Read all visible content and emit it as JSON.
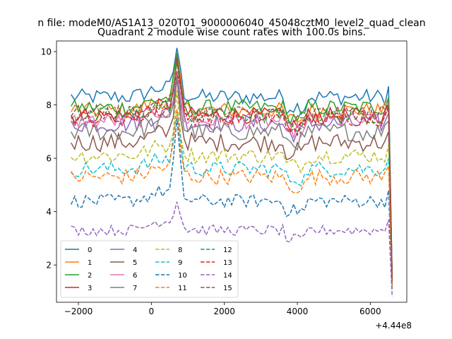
{
  "figure": {
    "suptitle": "n file: modeM0/AS1A13_020T01_9000006040_45048cztM0_level2_quad_clean"
  },
  "chart_data": {
    "type": "line",
    "title": "Quadrant 2 module wise count rates with 100.0s bins.",
    "xlabel": "",
    "ylabel": "",
    "x_offset_label": "+4.44e8",
    "xlim": [
      -2600,
      7000
    ],
    "ylim": [
      0.6,
      10.4
    ],
    "xticks": [
      -2000,
      0,
      2000,
      4000,
      6000
    ],
    "xtick_labels": [
      "−2000",
      "0",
      "2000",
      "4000",
      "6000"
    ],
    "yticks": [
      2,
      4,
      6,
      8,
      10
    ],
    "ytick_labels": [
      "2",
      "4",
      "6",
      "8",
      "10"
    ],
    "grid": false,
    "legend_placement": "lower-left",
    "legend_columns": 4,
    "x_sampling": {
      "start": -2200,
      "step": 100,
      "count": 89
    },
    "series": [
      {
        "name": "0",
        "color": "#1f77b4",
        "dashed": false,
        "base": 8.3,
        "amp": 0.3,
        "peak": 1.7,
        "end": 1.6
      },
      {
        "name": "1",
        "color": "#ff7f0e",
        "dashed": false,
        "base": 7.8,
        "amp": 0.3,
        "peak": 1.8,
        "end": 1.5
      },
      {
        "name": "2",
        "color": "#2ca02c",
        "dashed": false,
        "base": 7.9,
        "amp": 0.3,
        "peak": 1.6,
        "end": 1.4
      },
      {
        "name": "3",
        "color": "#d62728",
        "dashed": false,
        "base": 7.6,
        "amp": 0.3,
        "peak": 1.9,
        "end": 1.5
      },
      {
        "name": "4",
        "color": "#9467bd",
        "dashed": false,
        "base": 7.3,
        "amp": 0.35,
        "peak": 1.8,
        "end": 1.4
      },
      {
        "name": "5",
        "color": "#8c564b",
        "dashed": false,
        "base": 6.6,
        "amp": 0.35,
        "peak": 2.2,
        "end": 1.3
      },
      {
        "name": "6",
        "color": "#e377c2",
        "dashed": false,
        "base": 7.4,
        "amp": 0.3,
        "peak": 1.7,
        "end": 1.4
      },
      {
        "name": "7",
        "color": "#7f7f7f",
        "dashed": false,
        "base": 7.0,
        "amp": 0.35,
        "peak": 2.0,
        "end": 1.3
      },
      {
        "name": "8",
        "color": "#bcbd22",
        "dashed": true,
        "base": 6.1,
        "amp": 0.3,
        "peak": 2.0,
        "end": 1.2
      },
      {
        "name": "9",
        "color": "#17becf",
        "dashed": true,
        "base": 5.6,
        "amp": 0.3,
        "peak": 2.1,
        "end": 1.2
      },
      {
        "name": "10",
        "color": "#1f77b4",
        "dashed": true,
        "base": 4.4,
        "amp": 0.25,
        "peak": 2.7,
        "end": 1.1
      },
      {
        "name": "11",
        "color": "#ff7f0e",
        "dashed": true,
        "base": 5.3,
        "amp": 0.3,
        "peak": 2.2,
        "end": 1.1
      },
      {
        "name": "12",
        "color": "#2ca02c",
        "dashed": true,
        "base": 7.6,
        "amp": 0.3,
        "peak": 1.8,
        "end": 1.4
      },
      {
        "name": "13",
        "color": "#d62728",
        "dashed": true,
        "base": 7.5,
        "amp": 0.3,
        "peak": 1.8,
        "end": 1.4
      },
      {
        "name": "14",
        "color": "#9467bd",
        "dashed": true,
        "base": 3.3,
        "amp": 0.2,
        "peak": 1.0,
        "end": 0.8
      },
      {
        "name": "15",
        "color": "#8c564b",
        "dashed": true,
        "base": 7.7,
        "amp": 0.3,
        "peak": 1.7,
        "end": 1.4
      }
    ]
  }
}
